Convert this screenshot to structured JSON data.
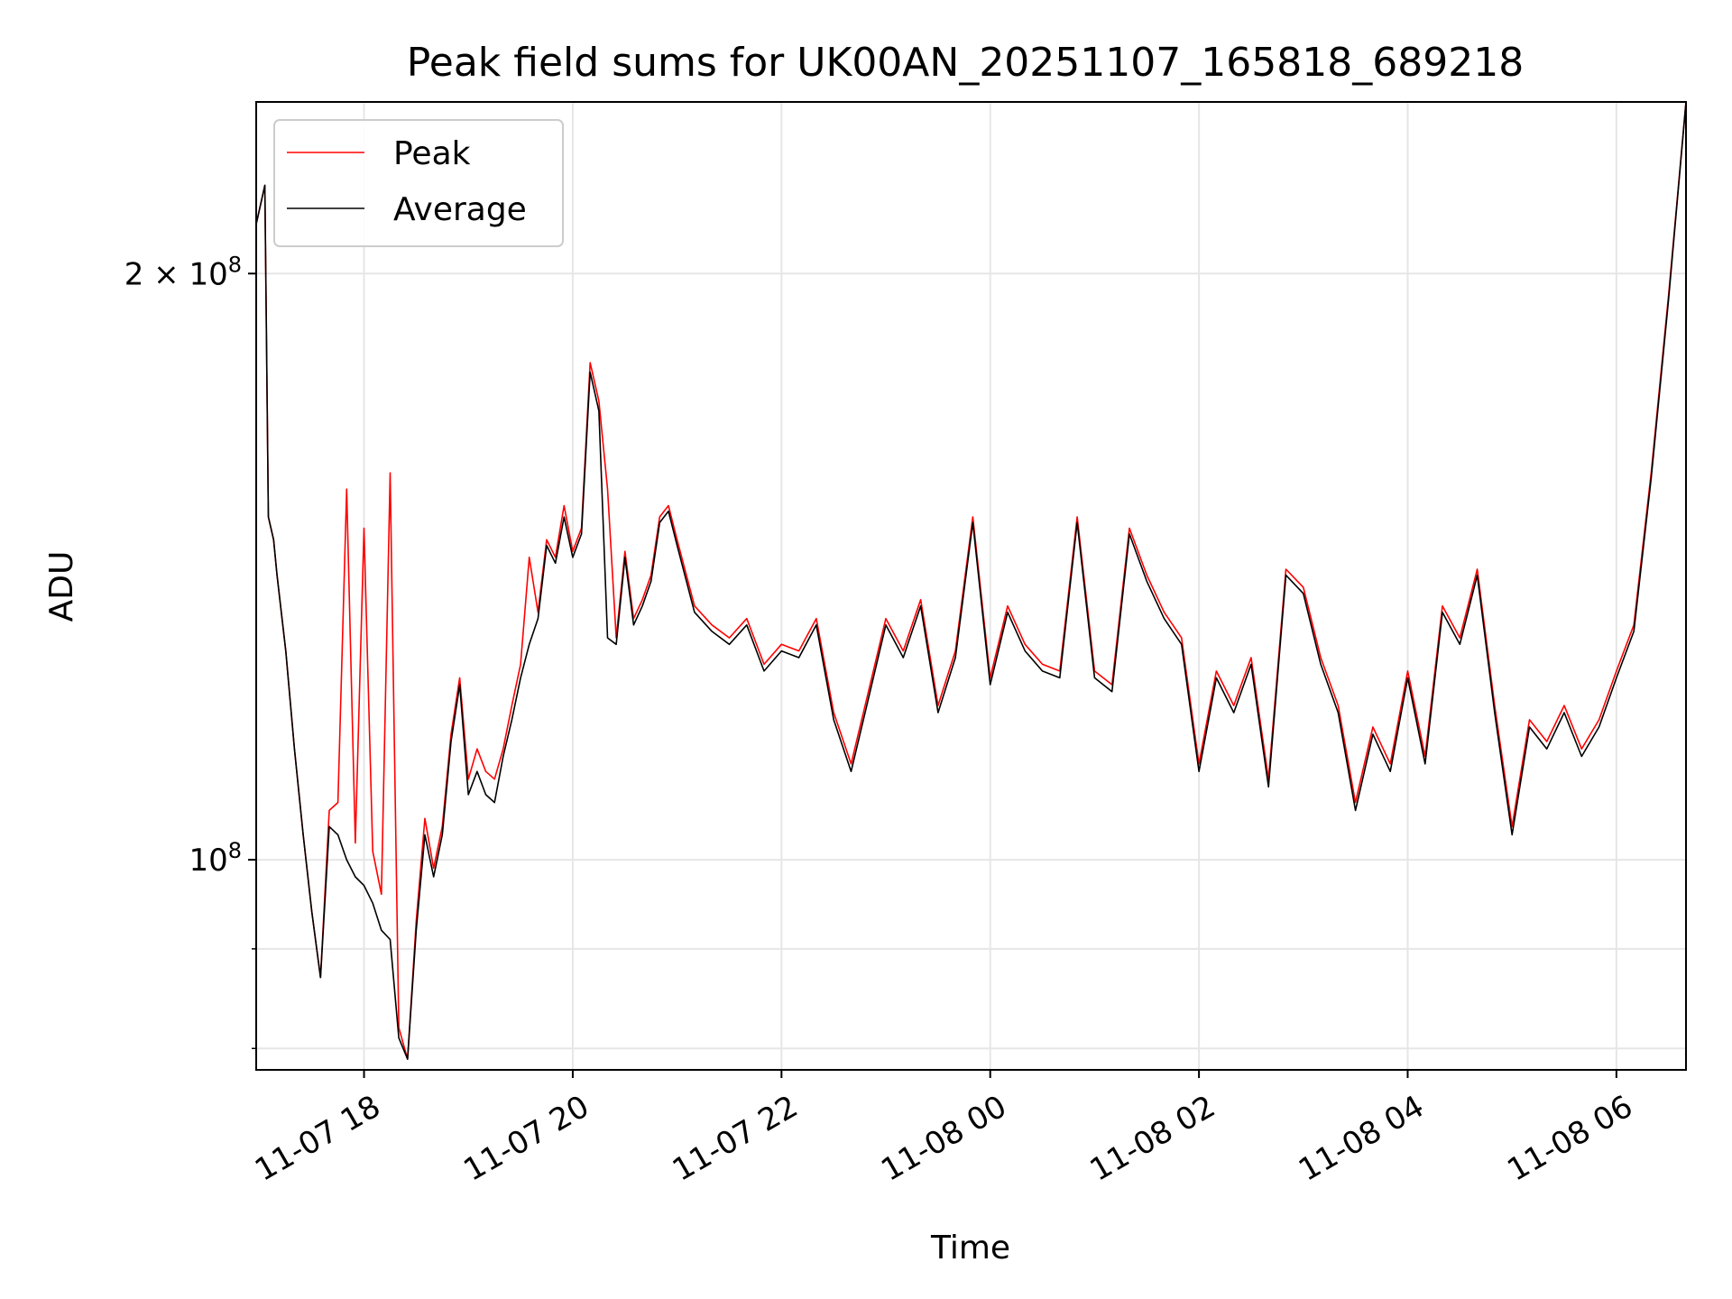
{
  "chart_data": {
    "type": "line",
    "title": "Peak field sums for UK00AN_20251107_165818_689218",
    "xlabel": "Time",
    "ylabel": "ADU",
    "x_scale": "time",
    "y_scale": "log",
    "xlim": [
      "2025-11-07 16:58",
      "2025-11-08 06:40"
    ],
    "ylim": [
      78000000,
      245000000
    ],
    "grid": true,
    "legend_position": "top-left",
    "x_ticks": [
      {
        "value": "2025-11-07 18:00",
        "label": "11-07 18"
      },
      {
        "value": "2025-11-07 20:00",
        "label": "11-07 20"
      },
      {
        "value": "2025-11-07 22:00",
        "label": "11-07 22"
      },
      {
        "value": "2025-11-08 00:00",
        "label": "11-08 00"
      },
      {
        "value": "2025-11-08 02:00",
        "label": "11-08 02"
      },
      {
        "value": "2025-11-08 04:00",
        "label": "11-08 04"
      },
      {
        "value": "2025-11-08 06:00",
        "label": "11-08 06"
      }
    ],
    "y_ticks_major": [
      {
        "value": 100000000,
        "base": "10",
        "exp": "8",
        "prefix": ""
      },
      {
        "value": 200000000,
        "base": "10",
        "exp": "8",
        "prefix": "2 × "
      }
    ],
    "y_ticks_minor": [
      80000000,
      90000000
    ],
    "colors": {
      "Peak": "#ff0000",
      "Average": "#000000"
    },
    "x": [
      "2025-11-07 16:58",
      "2025-11-07 17:03",
      "2025-11-07 17:05",
      "2025-11-07 17:08",
      "2025-11-07 17:10",
      "2025-11-07 17:15",
      "2025-11-07 17:20",
      "2025-11-07 17:25",
      "2025-11-07 17:30",
      "2025-11-07 17:35",
      "2025-11-07 17:40",
      "2025-11-07 17:45",
      "2025-11-07 17:50",
      "2025-11-07 17:55",
      "2025-11-07 18:00",
      "2025-11-07 18:05",
      "2025-11-07 18:10",
      "2025-11-07 18:15",
      "2025-11-07 18:20",
      "2025-11-07 18:25",
      "2025-11-07 18:30",
      "2025-11-07 18:35",
      "2025-11-07 18:40",
      "2025-11-07 18:45",
      "2025-11-07 18:50",
      "2025-11-07 18:55",
      "2025-11-07 19:00",
      "2025-11-07 19:05",
      "2025-11-07 19:10",
      "2025-11-07 19:15",
      "2025-11-07 19:20",
      "2025-11-07 19:25",
      "2025-11-07 19:30",
      "2025-11-07 19:35",
      "2025-11-07 19:40",
      "2025-11-07 19:45",
      "2025-11-07 19:50",
      "2025-11-07 19:55",
      "2025-11-07 20:00",
      "2025-11-07 20:05",
      "2025-11-07 20:10",
      "2025-11-07 20:15",
      "2025-11-07 20:20",
      "2025-11-07 20:25",
      "2025-11-07 20:30",
      "2025-11-07 20:35",
      "2025-11-07 20:40",
      "2025-11-07 20:45",
      "2025-11-07 20:50",
      "2025-11-07 20:55",
      "2025-11-07 21:00",
      "2025-11-07 21:10",
      "2025-11-07 21:20",
      "2025-11-07 21:30",
      "2025-11-07 21:40",
      "2025-11-07 21:50",
      "2025-11-07 22:00",
      "2025-11-07 22:10",
      "2025-11-07 22:20",
      "2025-11-07 22:30",
      "2025-11-07 22:40",
      "2025-11-07 22:50",
      "2025-11-07 23:00",
      "2025-11-07 23:10",
      "2025-11-07 23:20",
      "2025-11-07 23:30",
      "2025-11-07 23:40",
      "2025-11-07 23:50",
      "2025-11-08 00:00",
      "2025-11-08 00:10",
      "2025-11-08 00:20",
      "2025-11-08 00:30",
      "2025-11-08 00:40",
      "2025-11-08 00:50",
      "2025-11-08 01:00",
      "2025-11-08 01:10",
      "2025-11-08 01:20",
      "2025-11-08 01:30",
      "2025-11-08 01:40",
      "2025-11-08 01:50",
      "2025-11-08 02:00",
      "2025-11-08 02:10",
      "2025-11-08 02:20",
      "2025-11-08 02:30",
      "2025-11-08 02:40",
      "2025-11-08 02:50",
      "2025-11-08 03:00",
      "2025-11-08 03:10",
      "2025-11-08 03:20",
      "2025-11-08 03:30",
      "2025-11-08 03:40",
      "2025-11-08 03:50",
      "2025-11-08 04:00",
      "2025-11-08 04:10",
      "2025-11-08 04:20",
      "2025-11-08 04:30",
      "2025-11-08 04:40",
      "2025-11-08 04:50",
      "2025-11-08 05:00",
      "2025-11-08 05:10",
      "2025-11-08 05:20",
      "2025-11-08 05:30",
      "2025-11-08 05:40",
      "2025-11-08 05:50",
      "2025-11-08 06:00",
      "2025-11-08 06:10",
      "2025-11-08 06:20",
      "2025-11-08 06:30",
      "2025-11-08 06:40"
    ],
    "series": [
      {
        "name": "Peak",
        "values": [
          212000000,
          222000000,
          150000000,
          146000000,
          140000000,
          128000000,
          114000000,
          103000000,
          94000000,
          87000000,
          106000000,
          107000000,
          155000000,
          102000000,
          148000000,
          101000000,
          96000000,
          158000000,
          82000000,
          79000000,
          93000000,
          105000000,
          99000000,
          104000000,
          116000000,
          124000000,
          110000000,
          114000000,
          111000000,
          110000000,
          114000000,
          120000000,
          126000000,
          143000000,
          134000000,
          146000000,
          143000000,
          152000000,
          144000000,
          148000000,
          180000000,
          172000000,
          155000000,
          130000000,
          144000000,
          133000000,
          136000000,
          140000000,
          150000000,
          152000000,
          146000000,
          135000000,
          132000000,
          130000000,
          133000000,
          126000000,
          129000000,
          128000000,
          133000000,
          119000000,
          112000000,
          122000000,
          133000000,
          128000000,
          136000000,
          120000000,
          128000000,
          150000000,
          124000000,
          135000000,
          129000000,
          126000000,
          125000000,
          150000000,
          125000000,
          123000000,
          148000000,
          140000000,
          134000000,
          130000000,
          112000000,
          125000000,
          120000000,
          127000000,
          110000000,
          141000000,
          138000000,
          127000000,
          120000000,
          107000000,
          117000000,
          112000000,
          125000000,
          113000000,
          135000000,
          130000000,
          141000000,
          120000000,
          104000000,
          118000000,
          115000000,
          120000000,
          114000000,
          118000000,
          125000000,
          132000000,
          158000000,
          195000000,
          245000000
        ]
      },
      {
        "name": "Average",
        "values": [
          212000000,
          222000000,
          150000000,
          146000000,
          140000000,
          128000000,
          114000000,
          103000000,
          94000000,
          87000000,
          104000000,
          103000000,
          100000000,
          98000000,
          97000000,
          95000000,
          92000000,
          91000000,
          81000000,
          79000000,
          92000000,
          103000000,
          98000000,
          103000000,
          115000000,
          123000000,
          108000000,
          111000000,
          108000000,
          107000000,
          113000000,
          118000000,
          124000000,
          129000000,
          133000000,
          145000000,
          142000000,
          150000000,
          143000000,
          147000000,
          178000000,
          170000000,
          130000000,
          129000000,
          143000000,
          132000000,
          135000000,
          139000000,
          149000000,
          151000000,
          145000000,
          134000000,
          131000000,
          129000000,
          132000000,
          125000000,
          128000000,
          127000000,
          132000000,
          118000000,
          111000000,
          121000000,
          132000000,
          127000000,
          135000000,
          119000000,
          127000000,
          149000000,
          123000000,
          134000000,
          128000000,
          125000000,
          124000000,
          149000000,
          124000000,
          122000000,
          147000000,
          139000000,
          133000000,
          129000000,
          111000000,
          124000000,
          119000000,
          126000000,
          109000000,
          140000000,
          137000000,
          126000000,
          119000000,
          106000000,
          116000000,
          111000000,
          124000000,
          112000000,
          134000000,
          129000000,
          140000000,
          119000000,
          103000000,
          117000000,
          114000000,
          119000000,
          113000000,
          117000000,
          124000000,
          131000000,
          157000000,
          194000000,
          245000000
        ]
      }
    ]
  }
}
